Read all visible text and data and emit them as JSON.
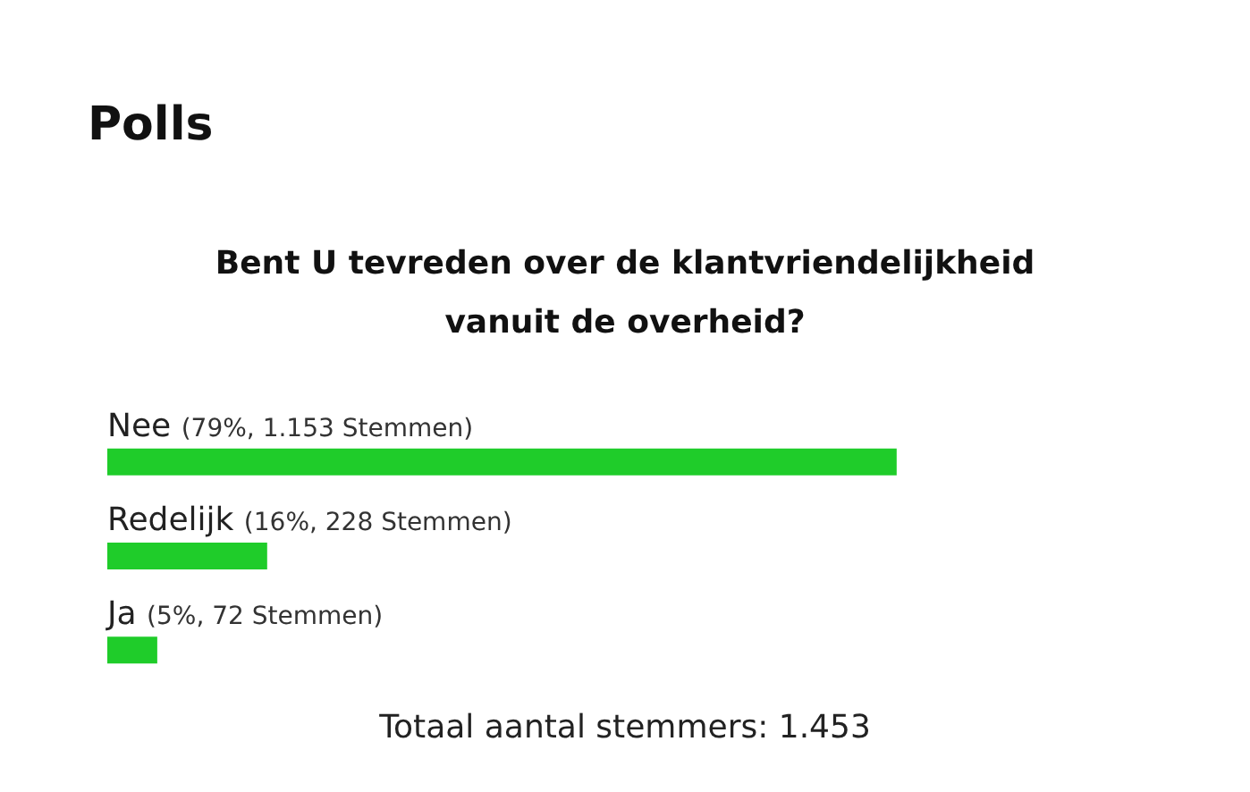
{
  "chart_data": {
    "type": "bar",
    "orientation": "horizontal",
    "title": "Polls",
    "subtitle": "Bent U tevreden over de klantvriendelijkheid\nvanuit de overheid?",
    "categories": [
      "Nee",
      "Redelijk",
      "Ja"
    ],
    "values": [
      79,
      16,
      5
    ],
    "value_labels": [
      "(79%, 1.153 Stemmen)",
      "(16%, 228 Stemmen)",
      "(5%, 72 Stemmen)"
    ],
    "color": "#1fcc2a",
    "tick_labels": "y",
    "annotations": [
      "Totaal aantal stemmers: 1.453"
    ]
  }
}
